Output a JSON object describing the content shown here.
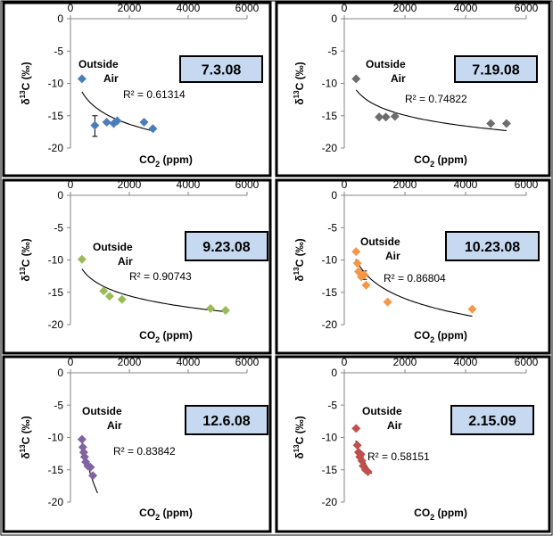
{
  "chart_data": [
    {
      "type": "scatter",
      "date_label": "7.3.08",
      "annotation": "Outside Air",
      "r2_label": "R² = 0.61314",
      "xlabel": "CO2 (ppm)",
      "ylabel": "δ13C (‰)",
      "xlim": [
        0,
        6000
      ],
      "ylim": [
        -20,
        0
      ],
      "xticks": [
        0,
        2000,
        4000,
        6000
      ],
      "yticks": [
        0,
        -5,
        -10,
        -15,
        -20
      ],
      "color": "#4a7ebb",
      "marker": "diamond",
      "points": [
        [
          390,
          -9.3
        ],
        [
          830,
          -16.5
        ],
        [
          1230,
          -16.0
        ],
        [
          1470,
          -16.2
        ],
        [
          1590,
          -15.8
        ],
        [
          2500,
          -16.0
        ],
        [
          2800,
          -17.0
        ]
      ],
      "error_bars": [
        {
          "x": 830,
          "y": -16.5,
          "low": -18.2,
          "high": -15.0
        }
      ],
      "trendline": {
        "kind": "log",
        "x_range": [
          390,
          2850
        ],
        "y_range": [
          -11.3,
          -17.4
        ]
      }
    },
    {
      "type": "scatter",
      "date_label": "7.19.08",
      "annotation": "Outside Air",
      "r2_label": "R² = 0.74822",
      "xlabel": "CO2 (ppm)",
      "ylabel": "δ13C (‰)",
      "xlim": [
        0,
        6000
      ],
      "ylim": [
        -20,
        0
      ],
      "xticks": [
        0,
        2000,
        4000,
        6000
      ],
      "yticks": [
        0,
        -5,
        -10,
        -15,
        -20
      ],
      "color": "#6d6d6d",
      "marker": "diamond",
      "points": [
        [
          390,
          -9.3
        ],
        [
          1150,
          -15.2
        ],
        [
          1370,
          -15.2
        ],
        [
          1670,
          -15.1
        ],
        [
          4830,
          -16.2
        ],
        [
          5350,
          -16.2
        ]
      ],
      "trendline": {
        "kind": "log",
        "x_range": [
          390,
          5350
        ],
        "y_range": [
          -11.0,
          -17.3
        ]
      }
    },
    {
      "type": "scatter",
      "date_label": "9.23.08",
      "annotation": "Outside Air",
      "r2_label": "R² = 0.90743",
      "xlabel": "CO2 (ppm)",
      "ylabel": "δ13C (‰)",
      "xlim": [
        0,
        6000
      ],
      "ylim": [
        -20,
        0
      ],
      "xticks": [
        0,
        2000,
        4000,
        6000
      ],
      "yticks": [
        0,
        -5,
        -10,
        -15,
        -20
      ],
      "color": "#9bbb59",
      "marker": "diamond",
      "points": [
        [
          390,
          -9.9
        ],
        [
          1130,
          -14.8
        ],
        [
          1330,
          -15.6
        ],
        [
          1750,
          -16.1
        ],
        [
          4760,
          -17.5
        ],
        [
          5270,
          -17.8
        ]
      ],
      "trendline": {
        "kind": "log",
        "x_range": [
          390,
          5270
        ],
        "y_range": [
          -11.4,
          -18.0
        ]
      }
    },
    {
      "type": "scatter",
      "date_label": "10.23.08",
      "annotation": "Outside Air",
      "r2_label": "R² = 0.86804",
      "xlabel": "CO2 (ppm)",
      "ylabel": "δ13C (‰)",
      "xlim": [
        0,
        6000
      ],
      "ylim": [
        -20,
        0
      ],
      "xticks": [
        0,
        2000,
        4000,
        6000
      ],
      "yticks": [
        0,
        -5,
        -10,
        -15,
        -20
      ],
      "color": "#f79646",
      "marker": "diamond",
      "points": [
        [
          390,
          -8.7
        ],
        [
          430,
          -10.5
        ],
        [
          470,
          -11.8
        ],
        [
          560,
          -12.6
        ],
        [
          660,
          -12.3
        ],
        [
          720,
          -13.9
        ],
        [
          1430,
          -16.5
        ],
        [
          4220,
          -17.6
        ]
      ],
      "error_bars": [
        {
          "x": 660,
          "y": -12.3,
          "low": -13.0,
          "high": -11.7
        }
      ],
      "trendline": {
        "kind": "log",
        "x_range": [
          380,
          4220
        ],
        "y_range": [
          -9.9,
          -18.7
        ]
      }
    },
    {
      "type": "scatter",
      "date_label": "12.6.08",
      "annotation": "Outside Air",
      "r2_label": "R² = 0.83842",
      "xlabel": "CO2 (ppm)",
      "ylabel": "δ13C (‰)",
      "xlim": [
        0,
        6000
      ],
      "ylim": [
        -20,
        0
      ],
      "xticks": [
        0,
        2000,
        4000,
        6000
      ],
      "yticks": [
        0,
        -5,
        -10,
        -15,
        -20
      ],
      "color": "#8064a2",
      "marker": "diamond",
      "points": [
        [
          390,
          -10.3
        ],
        [
          420,
          -11.5
        ],
        [
          450,
          -12.3
        ],
        [
          480,
          -13.0
        ],
        [
          520,
          -13.8
        ],
        [
          590,
          -14.4
        ],
        [
          680,
          -14.6
        ],
        [
          760,
          -15.9
        ]
      ],
      "trendline": {
        "kind": "log",
        "x_range": [
          380,
          920
        ],
        "y_range": [
          -10.0,
          -18.6
        ]
      }
    },
    {
      "type": "scatter",
      "date_label": "2.15.09",
      "annotation": "Outside Air",
      "r2_label": "R² = 0.58151",
      "xlabel": "CO2 (ppm)",
      "ylabel": "δ13C (‰)",
      "xlim": [
        0,
        6000
      ],
      "ylim": [
        -20,
        0
      ],
      "xticks": [
        0,
        2000,
        4000,
        6000
      ],
      "yticks": [
        0,
        -5,
        -10,
        -15,
        -20
      ],
      "color": "#c0504d",
      "marker": "diamond",
      "points": [
        [
          390,
          -8.6
        ],
        [
          430,
          -11.2
        ],
        [
          470,
          -12.3
        ],
        [
          510,
          -13.0
        ],
        [
          550,
          -12.6
        ],
        [
          580,
          -13.6
        ],
        [
          620,
          -14.4
        ],
        [
          700,
          -15.0
        ],
        [
          780,
          -15.3
        ]
      ],
      "trendline": {
        "kind": "log",
        "x_range": [
          380,
          900
        ],
        "y_range": [
          -10.5,
          -15.6
        ]
      }
    }
  ]
}
